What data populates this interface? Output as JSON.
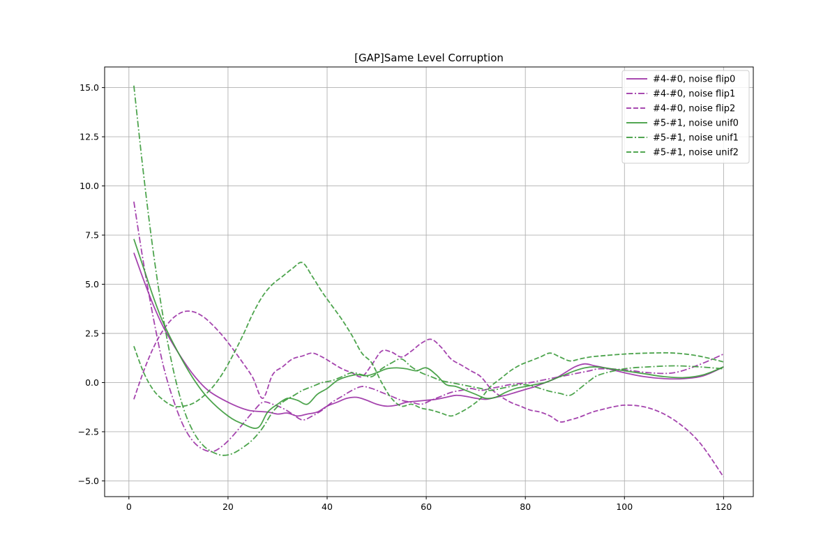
{
  "chart_data": {
    "type": "line",
    "title": "[GAP]Same Level Corruption",
    "xlabel": "",
    "ylabel": "",
    "xlim": [
      -4.9,
      126
    ],
    "ylim": [
      -5.8,
      16.05
    ],
    "xticks": [
      0,
      20,
      40,
      60,
      80,
      100,
      120
    ],
    "yticks": [
      -5.0,
      -2.5,
      0.0,
      2.5,
      5.0,
      7.5,
      10.0,
      12.5,
      15.0
    ],
    "xtick_labels": [
      "0",
      "20",
      "40",
      "60",
      "80",
      "100",
      "120"
    ],
    "ytick_labels": [
      "−5.0",
      "−2.5",
      "0.0",
      "2.5",
      "5.0",
      "7.5",
      "10.0",
      "12.5",
      "15.0"
    ],
    "grid": true,
    "legend_position": "upper right",
    "colors": {
      "purple": "#9b30a5",
      "green": "#3a9a3a"
    },
    "series": [
      {
        "name": "#4-#0, noise flip0",
        "color": "#9b30a5",
        "linestyle": "solid",
        "x": [
          1,
          3,
          5,
          7,
          10,
          13,
          16,
          20,
          24,
          28,
          30,
          32,
          34,
          36,
          38,
          40,
          42,
          44,
          46,
          48,
          50,
          52,
          54,
          56,
          58,
          60,
          62,
          64,
          66,
          68,
          70,
          72,
          74,
          76,
          78,
          80,
          82,
          84,
          86,
          88,
          90,
          92,
          94,
          96,
          100,
          104,
          108,
          112,
          116,
          120
        ],
        "y": [
          6.6,
          5.2,
          3.9,
          2.8,
          1.5,
          0.4,
          -0.4,
          -1.0,
          -1.4,
          -1.5,
          -1.6,
          -1.55,
          -1.7,
          -1.6,
          -1.5,
          -1.2,
          -1.0,
          -0.8,
          -0.75,
          -0.9,
          -1.1,
          -1.2,
          -1.15,
          -1.0,
          -0.95,
          -0.9,
          -0.85,
          -0.75,
          -0.65,
          -0.7,
          -0.8,
          -0.85,
          -0.75,
          -0.65,
          -0.5,
          -0.35,
          -0.2,
          0.0,
          0.2,
          0.5,
          0.8,
          0.95,
          0.85,
          0.75,
          0.5,
          0.3,
          0.2,
          0.2,
          0.35,
          0.8
        ]
      },
      {
        "name": "#4-#0, noise flip1",
        "color": "#9b30a5",
        "linestyle": "dashdot",
        "x": [
          1,
          3,
          5,
          7,
          9,
          11,
          13,
          15,
          17,
          19,
          21,
          23,
          25,
          27,
          29,
          31,
          33,
          35,
          37,
          39,
          41,
          43,
          45,
          47,
          49,
          51,
          53,
          55,
          57,
          59,
          61,
          63,
          65,
          67,
          69,
          71,
          73,
          75,
          77,
          79,
          81,
          83,
          85,
          87,
          89,
          91,
          93,
          95,
          100,
          105,
          110,
          115,
          120
        ],
        "y": [
          9.2,
          6.0,
          3.2,
          0.8,
          -0.9,
          -2.2,
          -3.0,
          -3.4,
          -3.5,
          -3.2,
          -2.7,
          -2.1,
          -1.5,
          -1.0,
          -1.1,
          -1.3,
          -1.6,
          -1.9,
          -1.7,
          -1.4,
          -1.0,
          -0.7,
          -0.4,
          -0.2,
          -0.3,
          -0.5,
          -0.7,
          -0.9,
          -1.0,
          -1.1,
          -0.9,
          -0.7,
          -0.5,
          -0.4,
          -0.3,
          -0.4,
          -0.3,
          -0.2,
          -0.1,
          -0.05,
          0.0,
          0.1,
          0.2,
          0.3,
          0.4,
          0.5,
          0.6,
          0.7,
          0.65,
          0.5,
          0.5,
          0.9,
          1.45
        ]
      },
      {
        "name": "#4-#0, noise flip2",
        "color": "#9b30a5",
        "linestyle": "dashed",
        "x": [
          1,
          3,
          5,
          7,
          9,
          11,
          13,
          15,
          17,
          19,
          21,
          23,
          25,
          27,
          29,
          31,
          33,
          35,
          37,
          39,
          41,
          43,
          45,
          47,
          49,
          51,
          53,
          55,
          57,
          59,
          61,
          63,
          65,
          67,
          69,
          71,
          73,
          75,
          77,
          79,
          81,
          83,
          85,
          87,
          89,
          91,
          93,
          95,
          100,
          105,
          110,
          115,
          120
        ],
        "y": [
          -0.85,
          0.6,
          1.8,
          2.7,
          3.3,
          3.6,
          3.6,
          3.35,
          2.9,
          2.35,
          1.7,
          1.0,
          0.25,
          -0.8,
          0.4,
          0.8,
          1.2,
          1.35,
          1.5,
          1.3,
          1.0,
          0.7,
          0.5,
          0.3,
          0.9,
          1.6,
          1.55,
          1.3,
          1.6,
          2.0,
          2.2,
          1.8,
          1.2,
          0.9,
          0.6,
          0.3,
          -0.3,
          -0.7,
          -1.0,
          -1.2,
          -1.4,
          -1.5,
          -1.7,
          -2.0,
          -1.9,
          -1.75,
          -1.55,
          -1.4,
          -1.15,
          -1.3,
          -1.9,
          -3.0,
          -4.8
        ]
      },
      {
        "name": "#5-#1, noise unif0",
        "color": "#3a9a3a",
        "linestyle": "solid",
        "x": [
          1,
          3,
          5,
          7,
          10,
          13,
          16,
          20,
          23,
          26,
          28,
          30,
          32,
          34,
          36,
          38,
          40,
          42,
          44,
          46,
          48,
          50,
          52,
          54,
          56,
          58,
          60,
          62,
          64,
          66,
          68,
          70,
          72,
          74,
          76,
          78,
          80,
          82,
          84,
          86,
          88,
          90,
          92,
          94,
          96,
          100,
          104,
          108,
          112,
          116,
          120
        ],
        "y": [
          7.3,
          5.8,
          4.3,
          3.0,
          1.5,
          0.2,
          -0.8,
          -1.7,
          -2.1,
          -2.3,
          -1.5,
          -1.1,
          -0.8,
          -0.9,
          -1.1,
          -0.6,
          -0.3,
          0.1,
          0.3,
          0.4,
          0.35,
          0.5,
          0.7,
          0.75,
          0.7,
          0.6,
          0.75,
          0.4,
          -0.1,
          -0.2,
          -0.4,
          -0.6,
          -0.8,
          -0.75,
          -0.5,
          -0.3,
          -0.2,
          -0.1,
          0.0,
          0.2,
          0.4,
          0.6,
          0.75,
          0.8,
          0.75,
          0.6,
          0.45,
          0.3,
          0.25,
          0.4,
          0.8
        ]
      },
      {
        "name": "#5-#1, noise unif1",
        "color": "#3a9a3a",
        "linestyle": "dashdot",
        "x": [
          1,
          3,
          5,
          7,
          9,
          11,
          13,
          15,
          17,
          19,
          21,
          23,
          25,
          27,
          29,
          31,
          33,
          35,
          37,
          39,
          41,
          43,
          45,
          47,
          49,
          51,
          53,
          55,
          57,
          59,
          61,
          63,
          65,
          67,
          69,
          71,
          73,
          75,
          77,
          79,
          81,
          83,
          85,
          87,
          89,
          91,
          93,
          95,
          100,
          105,
          110,
          115,
          120
        ],
        "y": [
          15.1,
          10.5,
          6.5,
          3.2,
          0.6,
          -1.3,
          -2.5,
          -3.2,
          -3.55,
          -3.7,
          -3.6,
          -3.3,
          -2.9,
          -2.3,
          -1.5,
          -1.0,
          -0.7,
          -0.4,
          -0.2,
          0.0,
          0.1,
          0.3,
          0.5,
          0.4,
          0.3,
          0.7,
          1.0,
          1.2,
          0.8,
          0.5,
          0.3,
          0.1,
          0.0,
          -0.1,
          -0.2,
          -0.3,
          -0.4,
          -0.3,
          -0.2,
          -0.1,
          -0.15,
          -0.3,
          -0.45,
          -0.55,
          -0.65,
          -0.3,
          0.1,
          0.4,
          0.7,
          0.8,
          0.85,
          0.8,
          0.7
        ]
      },
      {
        "name": "#5-#1, noise unif2",
        "color": "#3a9a3a",
        "linestyle": "dashed",
        "x": [
          1,
          3,
          5,
          7,
          9,
          11,
          13,
          15,
          17,
          19,
          21,
          23,
          25,
          27,
          29,
          31,
          33,
          35,
          37,
          39,
          41,
          43,
          45,
          47,
          49,
          51,
          53,
          55,
          57,
          59,
          61,
          63,
          65,
          67,
          69,
          71,
          73,
          75,
          77,
          79,
          81,
          83,
          85,
          87,
          89,
          91,
          93,
          95,
          100,
          105,
          110,
          115,
          120
        ],
        "y": [
          1.85,
          0.5,
          -0.4,
          -0.9,
          -1.2,
          -1.2,
          -1.05,
          -0.7,
          -0.2,
          0.5,
          1.4,
          2.4,
          3.5,
          4.4,
          5.0,
          5.4,
          5.8,
          6.1,
          5.4,
          4.6,
          3.9,
          3.2,
          2.4,
          1.5,
          1.0,
          0.0,
          -0.8,
          -1.2,
          -1.1,
          -1.3,
          -1.4,
          -1.55,
          -1.7,
          -1.5,
          -1.2,
          -0.8,
          -0.2,
          0.2,
          0.6,
          0.9,
          1.1,
          1.3,
          1.5,
          1.3,
          1.1,
          1.2,
          1.3,
          1.35,
          1.45,
          1.5,
          1.5,
          1.35,
          1.05
        ]
      }
    ]
  }
}
